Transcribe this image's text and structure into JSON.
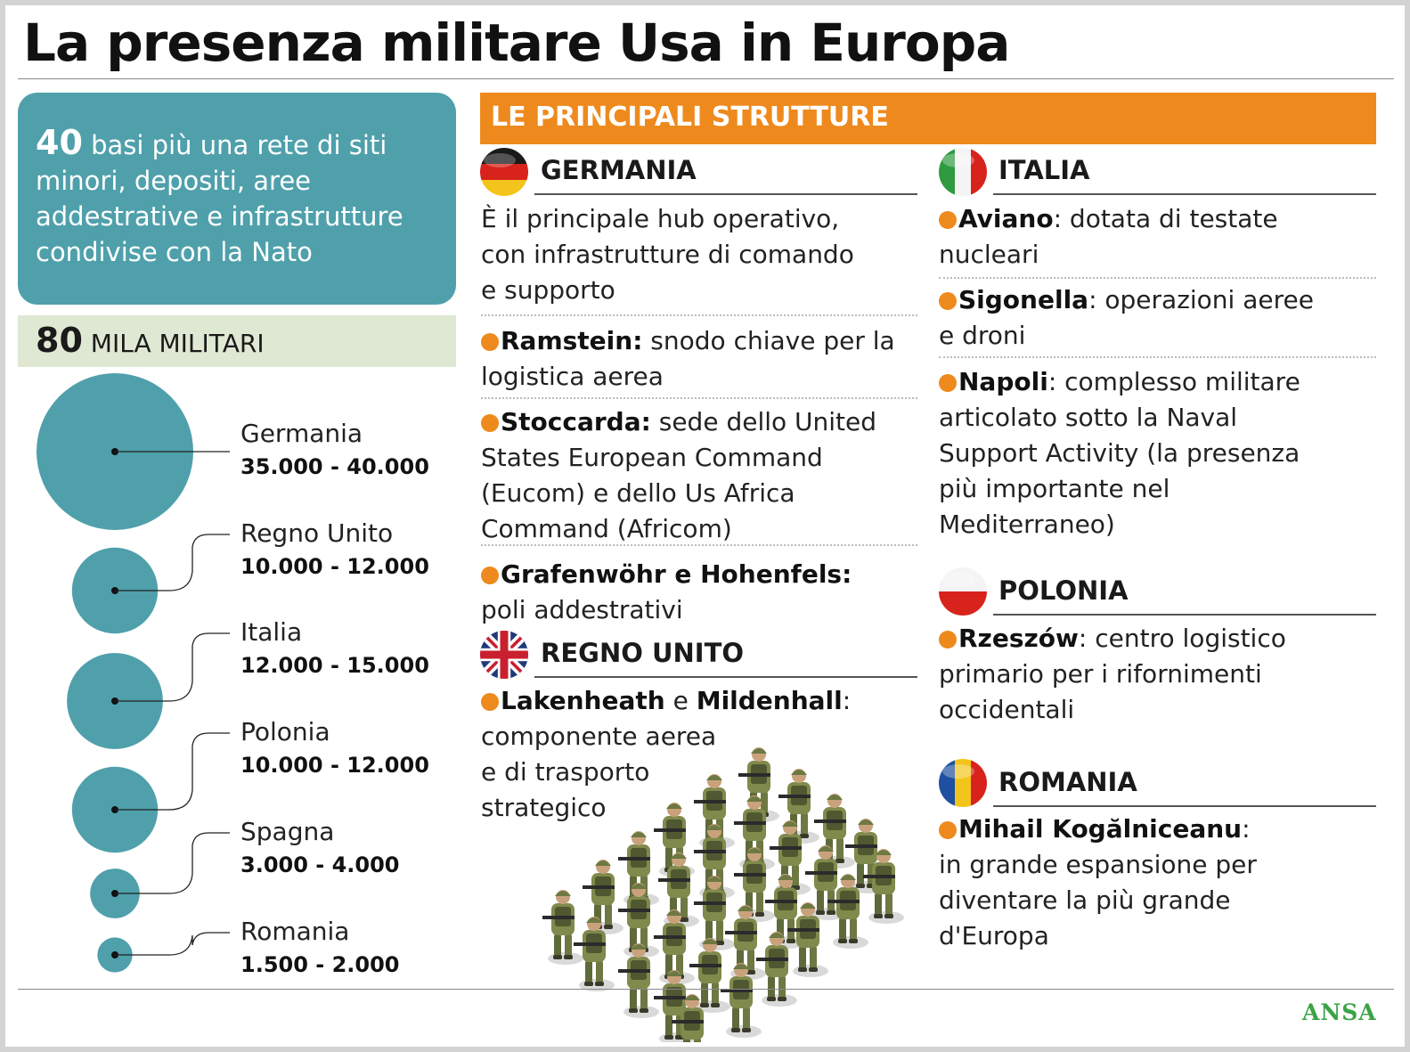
{
  "title": "La presenza militare Usa in Europa",
  "summary": {
    "number": "40",
    "line1": " basi più una rete di siti",
    "line2": "minori, depositi, aree",
    "line3": "addestrative e infrastrutture",
    "line4": "condivise con la Nato"
  },
  "military": {
    "number": "80",
    "label": " MILA MILITARI"
  },
  "bubbles": [
    {
      "country": "Germania",
      "range": "35.000 - 40.000",
      "min": 35000,
      "max": 40000
    },
    {
      "country": "Regno Unito",
      "range": "10.000 - 12.000",
      "min": 10000,
      "max": 12000
    },
    {
      "country": "Italia",
      "range": "12.000 - 15.000",
      "min": 12000,
      "max": 15000
    },
    {
      "country": "Polonia",
      "range": "10.000 - 12.000",
      "min": 10000,
      "max": 12000
    },
    {
      "country": "Spagna",
      "range": "3.000 - 4.000",
      "min": 3000,
      "max": 4000
    },
    {
      "country": "Romania",
      "range": "1.500 - 2.000",
      "min": 1500,
      "max": 2000
    }
  ],
  "structures_header": "LE PRINCIPALI STRUTTURE",
  "germania": {
    "heading": "GERMANIA",
    "intro": [
      "È il principale hub operativo,",
      "con infrastrutture di comando",
      "e supporto"
    ],
    "ramstein": {
      "name": "Ramstein:",
      "l1": " snodo chiave per la",
      "l2": "logistica aerea"
    },
    "stoccarda": {
      "name": "Stoccarda:",
      "l1": " sede dello United",
      "l2": "States European Command",
      "l3": "(Eucom) e dello Us Africa",
      "l4": "Command (Africom)"
    },
    "grafenwohr": {
      "name": "Grafenwöhr e Hohenfels:",
      "l2": "poli addestrativi"
    }
  },
  "regno_unito": {
    "heading": "REGNO UNITO",
    "name1": "Lakenheath",
    "conj": " e ",
    "name2": "Mildenhall",
    "colon": ":",
    "l2": "componente aerea",
    "l3": "e di trasporto",
    "l4": "strategico"
  },
  "italia": {
    "heading": "ITALIA",
    "aviano": {
      "name": "Aviano",
      "l1": ": dotata di testate",
      "l2": "nucleari"
    },
    "sigonella": {
      "name": "Sigonella",
      "l1": ": operazioni aeree",
      "l2": "e droni"
    },
    "napoli": {
      "name": "Napoli",
      "l1": ": complesso militare",
      "l2": "articolato sotto la Naval",
      "l3": "Support Activity (la presenza",
      "l4": "più importante nel",
      "l5": "Mediterraneo)"
    }
  },
  "polonia": {
    "heading": "POLONIA",
    "name": "Rzeszów",
    "l1": ": centro logistico",
    "l2": "primario per i rifornimenti",
    "l3": "occidentali"
  },
  "romania": {
    "heading": "ROMANIA",
    "name": "Mihail Kogălniceanu",
    "l1": ":",
    "l2": "in grande espansione per",
    "l3": "diventare la più grande",
    "l4": "d'Europa"
  },
  "credit": "ANSA",
  "colors": {
    "teal": "#4fa0ab",
    "orange": "#ee8a1d",
    "pale_green": "#dfe8d3",
    "ansa_green": "#3aa346"
  },
  "icons": [
    "flag-germany-icon",
    "flag-uk-icon",
    "flag-italy-icon",
    "flag-poland-icon",
    "flag-romania-icon",
    "soldiers-illustration"
  ]
}
